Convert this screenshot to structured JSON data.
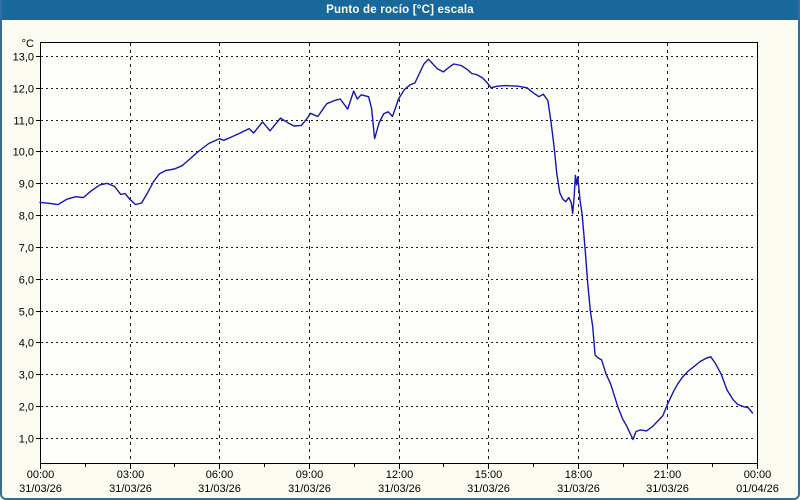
{
  "window": {
    "title": "Punto de rocío [°C] escala"
  },
  "colors": {
    "titlebar_bg": "#19689b",
    "titlebar_text": "#ffffff",
    "frame_border": "#2f6e9e",
    "background": "#fcfcf3",
    "plot_bg": "#fefefa",
    "grid": "#1a1a1a",
    "axis": "#000000",
    "line": "#1515b5",
    "label_text": "#000000"
  },
  "chart_data": {
    "type": "line",
    "title": "Punto de rocío [°C] escala",
    "ylabel": "°C",
    "unit_label": "°C",
    "decimal_separator": ",",
    "grid": "dotted",
    "legend": "none",
    "ylim": [
      0.21,
      13.44
    ],
    "xlim_hours": [
      0,
      24
    ],
    "yticks": [
      {
        "value": 13,
        "label": "13,0"
      },
      {
        "value": 12,
        "label": "12,0"
      },
      {
        "value": 11,
        "label": "11,0"
      },
      {
        "value": 10,
        "label": "10,0"
      },
      {
        "value": 9,
        "label": "9,0"
      },
      {
        "value": 8,
        "label": "8,0"
      },
      {
        "value": 7,
        "label": "7,0"
      },
      {
        "value": 6,
        "label": "6,0"
      },
      {
        "value": 5,
        "label": "5,0"
      },
      {
        "value": 4,
        "label": "4,0"
      },
      {
        "value": 3,
        "label": "3,0"
      },
      {
        "value": 2,
        "label": "2,0"
      },
      {
        "value": 1,
        "label": "1,0"
      }
    ],
    "x_major_ticks": [
      {
        "hours": 0,
        "time": "00:00",
        "date": "31/03/26"
      },
      {
        "hours": 3,
        "time": "03:00",
        "date": "31/03/26"
      },
      {
        "hours": 6,
        "time": "06:00",
        "date": "31/03/26"
      },
      {
        "hours": 9,
        "time": "09:00",
        "date": "31/03/26"
      },
      {
        "hours": 12,
        "time": "12:00",
        "date": "31/03/26"
      },
      {
        "hours": 15,
        "time": "15:00",
        "date": "31/03/26"
      },
      {
        "hours": 18,
        "time": "18:00",
        "date": "31/03/26"
      },
      {
        "hours": 21,
        "time": "21:00",
        "date": "31/03/26"
      },
      {
        "hours": 24,
        "time": "00:00",
        "date": "01/04/26"
      }
    ],
    "x_minor_ticks_hours": [
      1.5,
      4.5,
      7.5,
      10.5,
      13.5,
      16.5,
      19.5,
      22.5
    ],
    "series": [
      {
        "name": "Punto de rocío",
        "points": [
          [
            0,
            8.4
          ],
          [
            0.3,
            8.37
          ],
          [
            0.6,
            8.33
          ],
          [
            0.9,
            8.5
          ],
          [
            1.2,
            8.58
          ],
          [
            1.45,
            8.55
          ],
          [
            1.7,
            8.75
          ],
          [
            2,
            8.95
          ],
          [
            2.25,
            9
          ],
          [
            2.5,
            8.9
          ],
          [
            2.7,
            8.65
          ],
          [
            2.85,
            8.68
          ],
          [
            3,
            8.5
          ],
          [
            3.2,
            8.33
          ],
          [
            3.4,
            8.38
          ],
          [
            3.6,
            8.7
          ],
          [
            3.8,
            9.05
          ],
          [
            4,
            9.3
          ],
          [
            4.2,
            9.4
          ],
          [
            4.5,
            9.45
          ],
          [
            4.75,
            9.55
          ],
          [
            5,
            9.75
          ],
          [
            5.3,
            10
          ],
          [
            5.65,
            10.25
          ],
          [
            6,
            10.4
          ],
          [
            6.15,
            10.35
          ],
          [
            6.4,
            10.45
          ],
          [
            6.7,
            10.58
          ],
          [
            7,
            10.72
          ],
          [
            7.15,
            10.58
          ],
          [
            7.45,
            10.93
          ],
          [
            7.7,
            10.65
          ],
          [
            8.05,
            11.05
          ],
          [
            8.3,
            10.9
          ],
          [
            8.5,
            10.8
          ],
          [
            8.75,
            10.82
          ],
          [
            8.95,
            11.05
          ],
          [
            9.05,
            11.2
          ],
          [
            9.3,
            11.1
          ],
          [
            9.6,
            11.5
          ],
          [
            9.85,
            11.6
          ],
          [
            10.05,
            11.65
          ],
          [
            10.3,
            11.33
          ],
          [
            10.5,
            11.9
          ],
          [
            10.62,
            11.65
          ],
          [
            10.75,
            11.78
          ],
          [
            11,
            11.72
          ],
          [
            11.1,
            11.35
          ],
          [
            11.2,
            10.4
          ],
          [
            11.35,
            10.9
          ],
          [
            11.5,
            11.18
          ],
          [
            11.65,
            11.25
          ],
          [
            11.8,
            11.1
          ],
          [
            12,
            11.65
          ],
          [
            12.2,
            11.95
          ],
          [
            12.4,
            12.1
          ],
          [
            12.55,
            12.15
          ],
          [
            12.7,
            12.45
          ],
          [
            12.85,
            12.75
          ],
          [
            13,
            12.9
          ],
          [
            13.1,
            12.8
          ],
          [
            13.3,
            12.6
          ],
          [
            13.5,
            12.5
          ],
          [
            13.7,
            12.65
          ],
          [
            13.85,
            12.75
          ],
          [
            14.1,
            12.7
          ],
          [
            14.3,
            12.58
          ],
          [
            14.45,
            12.45
          ],
          [
            14.6,
            12.42
          ],
          [
            14.8,
            12.32
          ],
          [
            14.95,
            12.18
          ],
          [
            15.1,
            12
          ],
          [
            15.3,
            12.05
          ],
          [
            15.6,
            12.07
          ],
          [
            16,
            12.05
          ],
          [
            16.3,
            12
          ],
          [
            16.5,
            11.85
          ],
          [
            16.7,
            11.72
          ],
          [
            16.85,
            11.8
          ],
          [
            17,
            11.6
          ],
          [
            17.1,
            10.95
          ],
          [
            17.2,
            10.2
          ],
          [
            17.3,
            9.3
          ],
          [
            17.4,
            8.7
          ],
          [
            17.5,
            8.5
          ],
          [
            17.6,
            8.42
          ],
          [
            17.7,
            8.55
          ],
          [
            17.78,
            8.4
          ],
          [
            17.83,
            8.05
          ],
          [
            17.88,
            8.6
          ],
          [
            17.92,
            9.25
          ],
          [
            17.96,
            8.95
          ],
          [
            18,
            9.2
          ],
          [
            18.08,
            8.45
          ],
          [
            18.15,
            8
          ],
          [
            18.25,
            6.9
          ],
          [
            18.33,
            5.9
          ],
          [
            18.42,
            5
          ],
          [
            18.5,
            4.5
          ],
          [
            18.58,
            3.6
          ],
          [
            18.7,
            3.5
          ],
          [
            18.8,
            3.45
          ],
          [
            18.95,
            3
          ],
          [
            19.1,
            2.7
          ],
          [
            19.2,
            2.4
          ],
          [
            19.35,
            1.95
          ],
          [
            19.5,
            1.6
          ],
          [
            19.65,
            1.35
          ],
          [
            19.85,
            0.95
          ],
          [
            19.95,
            1.2
          ],
          [
            20.1,
            1.25
          ],
          [
            20.3,
            1.22
          ],
          [
            20.5,
            1.35
          ],
          [
            20.7,
            1.55
          ],
          [
            20.85,
            1.7
          ],
          [
            21,
            2.05
          ],
          [
            21.2,
            2.45
          ],
          [
            21.35,
            2.7
          ],
          [
            21.5,
            2.9
          ],
          [
            21.7,
            3.1
          ],
          [
            21.9,
            3.25
          ],
          [
            22.1,
            3.4
          ],
          [
            22.3,
            3.5
          ],
          [
            22.45,
            3.55
          ],
          [
            22.6,
            3.35
          ],
          [
            22.8,
            3
          ],
          [
            23,
            2.5
          ],
          [
            23.2,
            2.2
          ],
          [
            23.35,
            2.05
          ],
          [
            23.55,
            1.98
          ],
          [
            23.7,
            1.95
          ],
          [
            23.85,
            1.78
          ]
        ]
      }
    ]
  }
}
